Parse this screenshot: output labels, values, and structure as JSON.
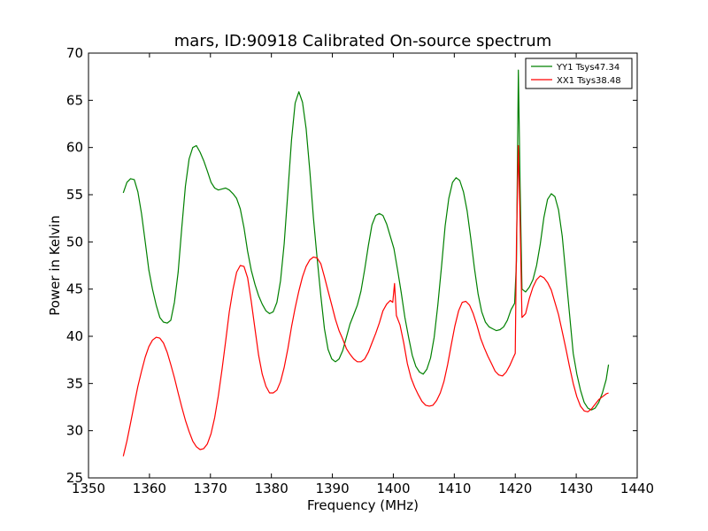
{
  "chart_data": {
    "type": "line",
    "title": "mars, ID:90918 Calibrated On-source spectrum",
    "xlabel": "Frequency (MHz)",
    "ylabel": "Power in Kelvin",
    "xlim": [
      1350,
      1440
    ],
    "ylim": [
      25,
      70
    ],
    "xticks": [
      1350,
      1360,
      1370,
      1380,
      1390,
      1400,
      1410,
      1420,
      1430,
      1440
    ],
    "yticks": [
      25,
      30,
      35,
      40,
      45,
      50,
      55,
      60,
      65,
      70
    ],
    "grid": false,
    "legend_position": "top-right",
    "series": [
      {
        "name": "YY1 Tsys47.34",
        "color": "#008000",
        "x": [
          1355.7,
          1356.3,
          1356.9,
          1357.5,
          1358.1,
          1358.7,
          1359.3,
          1359.9,
          1360.5,
          1361.1,
          1361.7,
          1362.3,
          1362.9,
          1363.5,
          1364.1,
          1364.7,
          1365.3,
          1365.9,
          1366.5,
          1367.1,
          1367.7,
          1368.3,
          1368.9,
          1369.5,
          1370.1,
          1370.7,
          1371.3,
          1371.9,
          1372.5,
          1373.1,
          1373.7,
          1374.3,
          1374.9,
          1375.5,
          1376.1,
          1376.7,
          1377.3,
          1377.9,
          1378.5,
          1379.1,
          1379.7,
          1380.3,
          1380.9,
          1381.5,
          1382.1,
          1382.7,
          1383.3,
          1383.9,
          1384.5,
          1385.1,
          1385.7,
          1386.3,
          1386.9,
          1387.5,
          1388.1,
          1388.7,
          1389.3,
          1389.9,
          1390.5,
          1391.1,
          1391.7,
          1392.3,
          1392.9,
          1393.5,
          1394.1,
          1394.7,
          1395.3,
          1395.9,
          1396.5,
          1397.1,
          1397.7,
          1398.3,
          1398.9,
          1399.5,
          1400.1,
          1400.7,
          1401.3,
          1401.9,
          1402.5,
          1403.1,
          1403.7,
          1404.3,
          1404.9,
          1405.5,
          1406.1,
          1406.7,
          1407.3,
          1407.9,
          1408.5,
          1409.1,
          1409.7,
          1410.3,
          1410.9,
          1411.5,
          1412.1,
          1412.7,
          1413.3,
          1413.9,
          1414.5,
          1415.1,
          1415.7,
          1416.3,
          1416.9,
          1417.5,
          1418.1,
          1418.7,
          1419.3,
          1419.9,
          1420.2,
          1420.5,
          1420.8,
          1421.1,
          1421.7,
          1422.3,
          1422.9,
          1423.5,
          1424.1,
          1424.7,
          1425.3,
          1425.9,
          1426.5,
          1427.1,
          1427.7,
          1428.3,
          1428.9,
          1429.5,
          1430.1,
          1430.7,
          1431.3,
          1431.9,
          1432.5,
          1433.1,
          1433.7,
          1434.3,
          1434.9,
          1435.3
        ],
        "y": [
          55.2,
          56.3,
          56.7,
          56.6,
          55.3,
          53.0,
          50.0,
          47.0,
          45.0,
          43.3,
          42.0,
          41.5,
          41.4,
          41.7,
          43.6,
          46.8,
          51.5,
          55.9,
          58.8,
          60.0,
          60.2,
          59.5,
          58.6,
          57.5,
          56.3,
          55.7,
          55.5,
          55.6,
          55.7,
          55.5,
          55.1,
          54.6,
          53.5,
          51.5,
          49.0,
          47.0,
          45.5,
          44.3,
          43.4,
          42.7,
          42.4,
          42.6,
          43.6,
          45.9,
          49.8,
          55.3,
          60.8,
          64.7,
          65.9,
          64.8,
          62.0,
          57.5,
          52.5,
          48.3,
          44.3,
          40.8,
          38.6,
          37.6,
          37.3,
          37.6,
          38.5,
          39.9,
          41.3,
          42.3,
          43.3,
          44.8,
          47.1,
          49.6,
          51.8,
          52.8,
          53.0,
          52.8,
          51.9,
          50.6,
          49.3,
          47.0,
          44.6,
          42.0,
          39.9,
          38.0,
          36.8,
          36.2,
          36.0,
          36.5,
          37.7,
          39.9,
          43.3,
          47.4,
          51.7,
          54.6,
          56.3,
          56.8,
          56.5,
          55.3,
          53.3,
          50.4,
          47.2,
          44.5,
          42.6,
          41.5,
          41.0,
          40.8,
          40.6,
          40.7,
          41.0,
          41.7,
          42.8,
          43.5,
          48.0,
          68.2,
          56.0,
          45.0,
          44.7,
          45.2,
          46.0,
          47.5,
          49.8,
          52.6,
          54.5,
          55.1,
          54.8,
          53.4,
          50.6,
          46.5,
          42.4,
          38.2,
          36.0,
          34.3,
          33.0,
          32.4,
          32.2,
          32.4,
          33.0,
          34.0,
          35.4,
          37.0
        ]
      },
      {
        "name": "XX1 Tsys38.48",
        "color": "#ff0000",
        "x": [
          1355.7,
          1356.3,
          1356.9,
          1357.5,
          1358.1,
          1358.7,
          1359.3,
          1359.9,
          1360.5,
          1361.1,
          1361.7,
          1362.3,
          1362.9,
          1363.5,
          1364.1,
          1364.7,
          1365.3,
          1365.9,
          1366.5,
          1367.1,
          1367.7,
          1368.3,
          1368.9,
          1369.5,
          1370.1,
          1370.7,
          1371.3,
          1371.9,
          1372.5,
          1373.1,
          1373.7,
          1374.3,
          1374.9,
          1375.5,
          1376.1,
          1376.7,
          1377.3,
          1377.9,
          1378.5,
          1379.1,
          1379.7,
          1380.3,
          1380.9,
          1381.5,
          1382.1,
          1382.7,
          1383.3,
          1383.9,
          1384.5,
          1385.1,
          1385.7,
          1386.3,
          1386.9,
          1387.5,
          1388.1,
          1388.7,
          1389.3,
          1389.9,
          1390.5,
          1391.1,
          1391.7,
          1392.3,
          1392.9,
          1393.5,
          1394.1,
          1394.7,
          1395.3,
          1395.9,
          1396.5,
          1397.1,
          1397.7,
          1398.3,
          1398.9,
          1399.5,
          1399.9,
          1400.2,
          1400.5,
          1401.1,
          1401.7,
          1402.3,
          1402.9,
          1403.5,
          1404.1,
          1404.7,
          1405.3,
          1405.9,
          1406.5,
          1407.1,
          1407.7,
          1408.3,
          1408.9,
          1409.5,
          1410.1,
          1410.7,
          1411.3,
          1411.9,
          1412.5,
          1413.1,
          1413.7,
          1414.3,
          1414.9,
          1415.5,
          1416.1,
          1416.7,
          1417.3,
          1417.9,
          1418.5,
          1419.1,
          1419.7,
          1420.0,
          1420.2,
          1420.5,
          1420.8,
          1421.1,
          1421.7,
          1422.3,
          1422.9,
          1423.5,
          1424.1,
          1424.7,
          1425.3,
          1425.9,
          1426.5,
          1427.1,
          1427.7,
          1428.3,
          1428.9,
          1429.5,
          1430.1,
          1430.7,
          1431.3,
          1431.9,
          1432.5,
          1433.1,
          1433.7,
          1434.3,
          1434.9,
          1435.3
        ],
        "y": [
          27.3,
          28.9,
          30.8,
          32.8,
          34.7,
          36.3,
          37.8,
          38.9,
          39.6,
          39.9,
          39.8,
          39.3,
          38.3,
          37.0,
          35.6,
          34.0,
          32.5,
          31.1,
          29.9,
          28.9,
          28.3,
          28.0,
          28.1,
          28.6,
          29.7,
          31.4,
          33.7,
          36.5,
          39.5,
          42.6,
          45.0,
          46.8,
          47.5,
          47.4,
          46.2,
          43.7,
          40.8,
          38.0,
          36.0,
          34.7,
          34.0,
          34.0,
          34.3,
          35.2,
          36.7,
          38.7,
          41.0,
          43.0,
          44.8,
          46.3,
          47.4,
          48.1,
          48.4,
          48.3,
          47.7,
          46.3,
          44.8,
          43.3,
          41.8,
          40.6,
          39.7,
          38.7,
          38.1,
          37.6,
          37.3,
          37.3,
          37.6,
          38.3,
          39.3,
          40.3,
          41.4,
          42.7,
          43.4,
          43.8,
          43.6,
          45.6,
          42.2,
          41.2,
          39.3,
          37.1,
          35.6,
          34.6,
          33.8,
          33.1,
          32.7,
          32.6,
          32.7,
          33.2,
          34.0,
          35.2,
          37.0,
          39.1,
          41.1,
          42.7,
          43.6,
          43.7,
          43.3,
          42.4,
          41.2,
          39.8,
          38.8,
          37.9,
          37.1,
          36.3,
          35.9,
          35.8,
          36.2,
          36.9,
          37.8,
          38.2,
          50.0,
          60.2,
          52.0,
          42.0,
          42.4,
          44.0,
          45.2,
          46.0,
          46.4,
          46.2,
          45.7,
          44.9,
          43.6,
          42.3,
          40.5,
          38.7,
          36.8,
          35.0,
          33.6,
          32.6,
          32.1,
          32.0,
          32.3,
          32.8,
          33.3,
          33.6,
          33.9,
          34.0
        ]
      }
    ]
  }
}
